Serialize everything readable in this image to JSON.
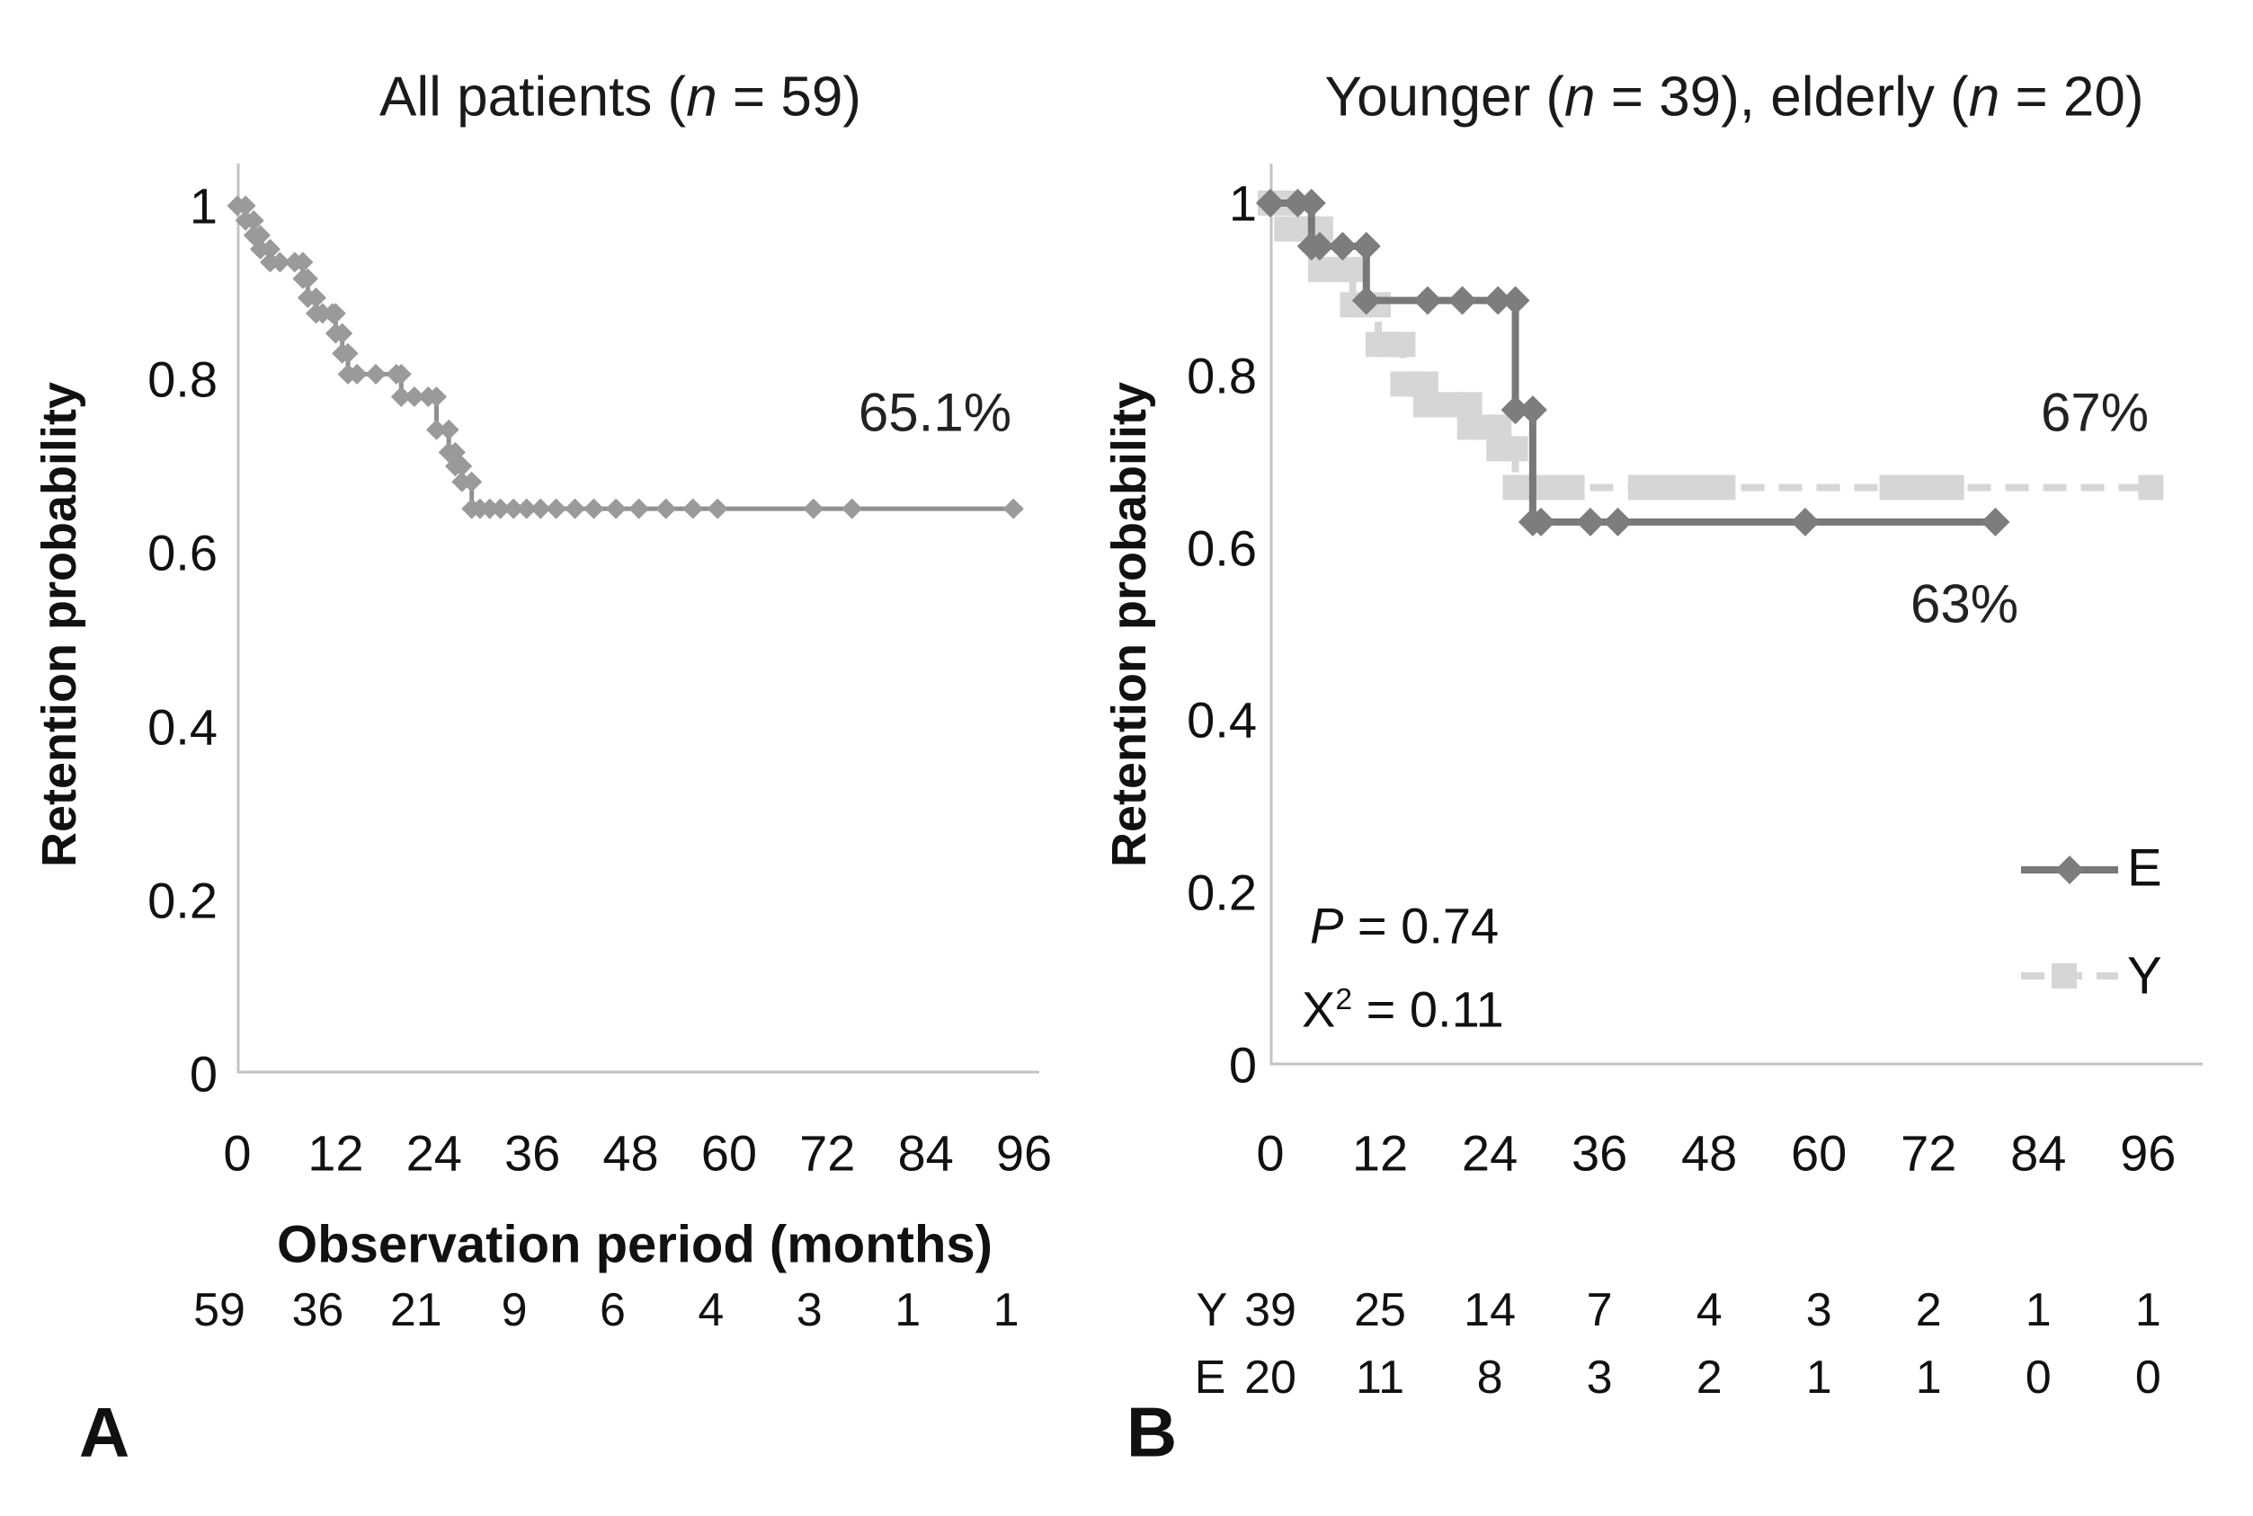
{
  "figure": {
    "panel_a_letter": "A",
    "panel_b_letter": "B"
  },
  "chart_data": [
    {
      "panel": "A",
      "type": "line",
      "subtype": "kaplan-meier-step",
      "title_plain": "All patients (n = 59)",
      "title_segments": [
        {
          "t": "All patients ("
        },
        {
          "t": "n",
          "i": true
        },
        {
          "t": " = 59)"
        }
      ],
      "xlabel": "Observation period  (months)",
      "ylabel": "Retention probability",
      "x_ticks": [
        0,
        12,
        24,
        36,
        48,
        60,
        72,
        84,
        96
      ],
      "y_ticks": [
        "1",
        "0.8",
        "0.6",
        "0.4",
        "0.2",
        "0"
      ],
      "xlim": [
        0,
        97
      ],
      "ylim": [
        0,
        1
      ],
      "grid": false,
      "annotation_final": "65.1%",
      "at_risk": {
        "values": [
          "59",
          "36",
          "21",
          "9",
          "6",
          "4",
          "3",
          "1",
          "1"
        ]
      },
      "series": [
        {
          "name": "All patients",
          "color": "#9a9a9a",
          "line_color": "#8f8f8f",
          "marker": "diamond",
          "dashed": false,
          "final_value": 0.651,
          "steps": [
            [
              0,
              1
            ],
            [
              1,
              0.983
            ],
            [
              2,
              0.966
            ],
            [
              2.8,
              0.95
            ],
            [
              4,
              0.935
            ],
            [
              8,
              0.916
            ],
            [
              8.6,
              0.894
            ],
            [
              9.6,
              0.876
            ],
            [
              12,
              0.853
            ],
            [
              12.8,
              0.83
            ],
            [
              13.5,
              0.806
            ],
            [
              20,
              0.78
            ],
            [
              24.3,
              0.742
            ],
            [
              25.8,
              0.716
            ],
            [
              26.6,
              0.7
            ],
            [
              27.4,
              0.682
            ],
            [
              28.6,
              0.651
            ]
          ],
          "censors": [
            [
              5.2,
              0.935
            ],
            [
              7,
              0.935
            ],
            [
              10.4,
              0.876
            ],
            [
              11.6,
              0.876
            ],
            [
              14.6,
              0.806
            ],
            [
              16.9,
              0.806
            ],
            [
              19.4,
              0.806
            ],
            [
              21.6,
              0.78
            ],
            [
              23.3,
              0.78
            ],
            [
              29.6,
              0.651
            ],
            [
              30.8,
              0.651
            ],
            [
              32.1,
              0.651
            ],
            [
              33.7,
              0.651
            ],
            [
              35.3,
              0.651
            ],
            [
              37,
              0.651
            ],
            [
              38.9,
              0.651
            ],
            [
              41.2,
              0.651
            ],
            [
              43.5,
              0.651
            ],
            [
              46.2,
              0.651
            ],
            [
              49,
              0.651
            ],
            [
              52.3,
              0.651
            ],
            [
              55.6,
              0.651
            ],
            [
              58.6,
              0.651
            ],
            [
              70.3,
              0.651
            ],
            [
              75,
              0.651
            ],
            [
              94.7,
              0.651
            ]
          ],
          "end_x": 95.8
        }
      ]
    },
    {
      "panel": "B",
      "type": "line",
      "subtype": "kaplan-meier-step",
      "title_plain": "Younger (n = 39), elderly (n = 20)",
      "title_segments": [
        {
          "t": "Younger ("
        },
        {
          "t": "n",
          "i": true
        },
        {
          "t": " = 39), elderly ("
        },
        {
          "t": "n",
          "i": true
        },
        {
          "t": " = 20)"
        }
      ],
      "xlabel": "",
      "ylabel": "Retention probability",
      "x_ticks": [
        0,
        12,
        24,
        36,
        48,
        60,
        72,
        84,
        96
      ],
      "y_ticks": [
        "1",
        "0.8",
        "0.6",
        "0.4",
        "0.2",
        "0"
      ],
      "xlim": [
        0,
        97
      ],
      "ylim": [
        0,
        1
      ],
      "grid": false,
      "annotation_y": "67%",
      "annotation_e": "63%",
      "stats_p_segments": [
        {
          "t": "P",
          "i": true
        },
        {
          "t": " = 0.74"
        }
      ],
      "stats_chi_segments": [
        {
          "t": "X"
        },
        {
          "t": "2",
          "sup": true
        },
        {
          "t": " = 0.11"
        }
      ],
      "stats_p_plain": "P = 0.74",
      "stats_chi_plain": "X2 = 0.11",
      "legend": [
        {
          "label": "E"
        },
        {
          "label": "Y"
        }
      ],
      "at_risk_rows": [
        {
          "prefix": "Y",
          "values": [
            "39",
            "25",
            "14",
            "7",
            "4",
            "3",
            "2",
            "1",
            "1"
          ]
        },
        {
          "prefix": "E",
          "values": [
            "20",
            "11",
            "8",
            "3",
            "2",
            "1",
            "1",
            "0",
            "0"
          ]
        }
      ],
      "series": [
        {
          "name": "E",
          "color": "#7d7d7d",
          "line_color": "#787878",
          "marker": "diamond",
          "dashed": false,
          "final_value": 0.63,
          "steps": [
            [
              0,
              1
            ],
            [
              4.5,
              0.95
            ],
            [
              10.5,
              0.887
            ],
            [
              26.8,
              0.76
            ],
            [
              28.7,
              0.63
            ]
          ],
          "censors": [
            [
              3,
              1
            ],
            [
              5.4,
              0.95
            ],
            [
              7.9,
              0.95
            ],
            [
              17.2,
              0.887
            ],
            [
              21,
              0.887
            ],
            [
              24.9,
              0.887
            ],
            [
              29.6,
              0.63
            ],
            [
              35,
              0.63
            ],
            [
              38,
              0.63
            ],
            [
              58.5,
              0.63
            ],
            [
              79.3,
              0.63
            ]
          ],
          "end_x": 79.5
        },
        {
          "name": "Y",
          "color": "#d6d6d6",
          "line_color": "#d6d6d6",
          "marker": "square",
          "dashed": true,
          "final_value": 0.67,
          "steps": [
            [
              0,
              1
            ],
            [
              1.8,
              0.97
            ],
            [
              5.5,
              0.923
            ],
            [
              9,
              0.882
            ],
            [
              11.8,
              0.836
            ],
            [
              14.5,
              0.79
            ],
            [
              17,
              0.766
            ],
            [
              21.8,
              0.74
            ],
            [
              25,
              0.715
            ],
            [
              26.8,
              0.67
            ]
          ],
          "censors": [
            [
              2.9,
              0.97
            ],
            [
              4,
              0.97
            ],
            [
              6.8,
              0.923
            ],
            [
              8,
              0.923
            ],
            [
              10,
              0.882
            ],
            [
              13,
              0.836
            ],
            [
              15.8,
              0.79
            ],
            [
              18,
              0.766
            ],
            [
              19.6,
              0.766
            ],
            [
              21.2,
              0.766
            ],
            [
              23.5,
              0.74
            ],
            [
              27.6,
              0.67
            ],
            [
              28.8,
              0.67
            ],
            [
              30.1,
              0.67
            ],
            [
              31.5,
              0.67
            ],
            [
              33,
              0.67
            ],
            [
              40.5,
              0.67
            ],
            [
              42,
              0.67
            ],
            [
              43.5,
              0.67
            ],
            [
              45,
              0.67
            ],
            [
              47,
              0.67
            ],
            [
              49.5,
              0.67
            ],
            [
              68,
              0.67
            ],
            [
              70,
              0.67
            ],
            [
              72.5,
              0.67
            ],
            [
              74.5,
              0.67
            ],
            [
              96.3,
              0.67
            ]
          ],
          "end_x": 96.8
        }
      ]
    }
  ]
}
